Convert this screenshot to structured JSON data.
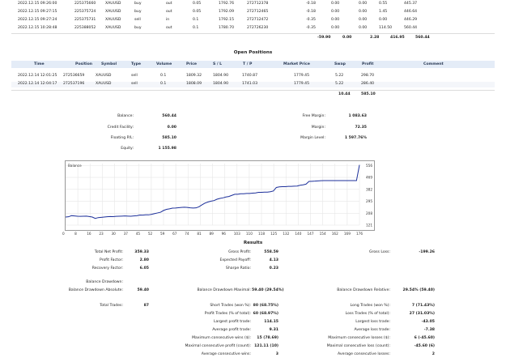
{
  "deals_rows": [
    [
      "2022.12.15 09:26:00",
      "225375660",
      "XAUUSD",
      "buy",
      "out",
      "0.05",
      "1792.76",
      "272712378",
      "-0.18",
      "0.00",
      "0.00",
      "0.55",
      "445.37"
    ],
    [
      "2022.12.15 09:27:15",
      "225375724",
      "XAUUSD",
      "buy",
      "out",
      "0.05",
      "1792.09",
      "272712465",
      "-0.18",
      "0.00",
      "0.00",
      "1.45",
      "446.64"
    ],
    [
      "2022.12.15 09:27:24",
      "225375731",
      "XAUUSD",
      "sell",
      "in",
      "0.1",
      "1792.15",
      "272712472",
      "-0.35",
      "0.00",
      "0.00",
      "0.00",
      "446.29"
    ],
    [
      "2022.12.15 10:28:48",
      "225388052",
      "XAUUSD",
      "buy",
      "out",
      "0.1",
      "1780.70",
      "272726230",
      "-0.35",
      "0.00",
      "0.00",
      "114.50",
      "560.44"
    ]
  ],
  "deals_totals": [
    "-59.90",
    "0.00",
    "2.28",
    "416.95",
    "560.44"
  ],
  "open_positions": {
    "title": "Open Positions",
    "headers": [
      "Time",
      "Position",
      "Symbol",
      "Type",
      "Volume",
      "Price",
      "S / L",
      "T / P",
      "Market Price",
      "Swap",
      "Profit",
      "Comment"
    ],
    "rows": [
      [
        "2022.12.14 12:01:25",
        "272536659",
        "XAUUSD",
        "sell",
        "0.1",
        "1809.32",
        "1804.90",
        "1740.87",
        "1779.45",
        "5.22",
        "298.70",
        ""
      ],
      [
        "2022.12.14 12:04:17",
        "272537196",
        "XAUUSD",
        "sell",
        "0.1",
        "1808.09",
        "1804.90",
        "1741.03",
        "1779.45",
        "5.22",
        "286.40",
        ""
      ]
    ],
    "totals": [
      "10.44",
      "585.10"
    ]
  },
  "account": {
    "balance_label": "Balance:",
    "balance": "560.44",
    "credit_label": "Credit Facility:",
    "credit": "0.00",
    "floating_label": "Floating P/L:",
    "floating": "585.10",
    "equity_label": "Equity:",
    "equity": "1 155.98",
    "free_margin_label": "Free Margin:",
    "free_margin": "1 083.63",
    "margin_label": "Margin:",
    "margin": "72.35",
    "margin_level_label": "Margin Level:",
    "margin_level": "1 597.76%"
  },
  "chart_data": {
    "type": "line",
    "series": [
      {
        "name": "Balance",
        "values": [
          180,
          182,
          190,
          188,
          186,
          185,
          186,
          187,
          184,
          180,
          170,
          176,
          178,
          180,
          182,
          184,
          183,
          185,
          186,
          187,
          188,
          187,
          186,
          188,
          190,
          195,
          194,
          196,
          196,
          200,
          205,
          210,
          215,
          228,
          236,
          240,
          245,
          246,
          248,
          250,
          252,
          250,
          247,
          246,
          247,
          256,
          270,
          282,
          290,
          296,
          300,
          310,
          316,
          320,
          326,
          330,
          338,
          346,
          346,
          350,
          350,
          352,
          352,
          354,
          356,
          360,
          360,
          362,
          362,
          365,
          370,
          396,
          400,
          402,
          402,
          404,
          404,
          405,
          406,
          412,
          415,
          420,
          440,
          441,
          442,
          444,
          445,
          446,
          446,
          446,
          446,
          446,
          446,
          446,
          446,
          446,
          446,
          446,
          446,
          560
        ]
      }
    ],
    "x_ticks": [
      "0",
      "8",
      "16",
      "23",
      "30",
      "37",
      "45",
      "52",
      "59",
      "67",
      "74",
      "81",
      "89",
      "96",
      "103",
      "110",
      "118",
      "125",
      "132",
      "140",
      "147",
      "154",
      "162",
      "169",
      "176"
    ],
    "y_ticks": [
      "121",
      "208",
      "295",
      "382",
      "469",
      "556"
    ],
    "ylim": [
      121,
      570
    ],
    "legend": "Balance"
  },
  "results": {
    "title": "Results",
    "total_net_profit_label": "Total Net Profit:",
    "total_net_profit": "359.33",
    "gross_profit_label": "Gross Profit:",
    "gross_profit": "558.59",
    "gross_loss_label": "Gross Loss:",
    "gross_loss": "-199.26",
    "profit_factor_label": "Profit Factor:",
    "profit_factor": "2.80",
    "expected_payoff_label": "Expected Payoff:",
    "expected_payoff": "4.13",
    "recovery_factor_label": "Recovery Factor:",
    "recovery_factor": "6.05",
    "sharpe_label": "Sharpe Ratio:",
    "sharpe": "0.23",
    "dd_label": "Balance Drawdown:",
    "dd_abs_label": "Balance Drawdown Absolute:",
    "dd_abs": "59.40",
    "dd_max_label": "Balance Drawdown Maximal:",
    "dd_max": "59.40 (29.54%)",
    "dd_rel_label": "Balance Drawdown Relative:",
    "dd_rel": "29.54% (59.40)",
    "total_trades_label": "Total Trades:",
    "total_trades": "87",
    "short_label": "Short Trades (won %):",
    "short": "80 (68.75%)",
    "long_label": "Long Trades (won %):",
    "long": "7 (71.43%)",
    "profit_trades_label": "Profit Trades (% of total):",
    "profit_trades": "60 (68.97%)",
    "loss_trades_label": "Loss Trades (% of total):",
    "loss_trades": "27 (31.03%)",
    "largest_profit_label": "Largest profit trade:",
    "largest_profit": "114.15",
    "largest_loss_label": "Largest loss trade:",
    "largest_loss": "-43.05",
    "avg_profit_label": "Average profit trade:",
    "avg_profit": "9.31",
    "avg_loss_label": "Average loss trade:",
    "avg_loss": "-7.38",
    "max_wins_label": "Maximum consecutive wins ($):",
    "max_wins": "15 (78.69)",
    "max_losses_label": "Maximum consecutive losses ($):",
    "max_losses": "6 (-45.60)",
    "max_profit_label": "Maximal consecutive profit (count):",
    "max_profit": "121.11 (10)",
    "max_loss_label": "Maximal consecutive loss (count):",
    "max_loss": "-45.60 (6)",
    "avg_wins_label": "Average consecutive wins:",
    "avg_wins": "3",
    "avg_losses_label": "Average consecutive losses:",
    "avg_losses": "2"
  }
}
